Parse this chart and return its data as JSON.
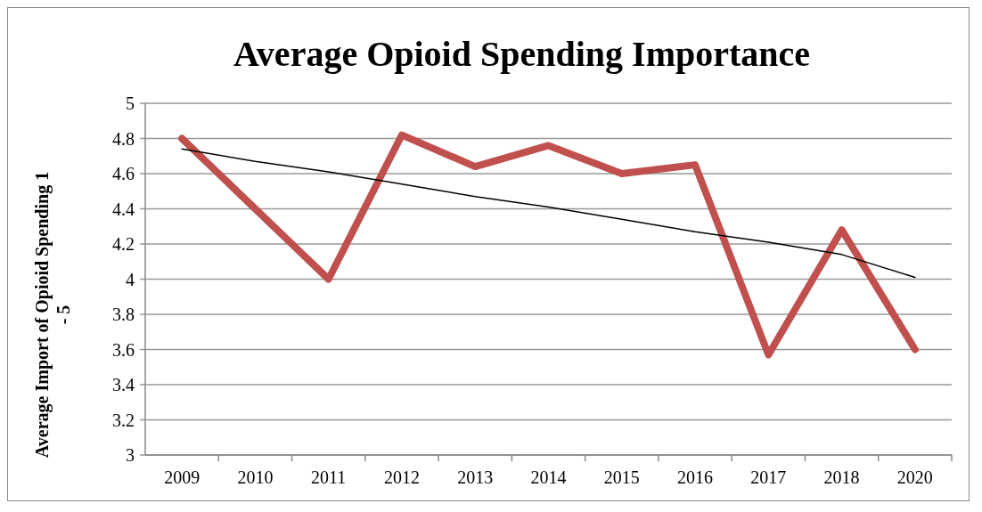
{
  "chart_data": {
    "type": "line",
    "title": "Average Opioid Spending Importance",
    "ylabel": "Average Import of Opioid Spending 1 - 5",
    "categories": [
      "2009",
      "2010",
      "2011",
      "2012",
      "2013",
      "2014",
      "2015",
      "2016",
      "2017",
      "2018",
      "2020"
    ],
    "series": [
      {
        "color": "#c0504d",
        "values": [
          4.8,
          4.4,
          4.0,
          4.82,
          4.64,
          4.76,
          4.6,
          4.65,
          3.57,
          4.28,
          3.6
        ]
      },
      {
        "type": "line",
        "color": "#000000",
        "values": [
          4.74,
          4.67,
          4.61,
          4.54,
          4.47,
          4.41,
          4.34,
          4.27,
          4.21,
          4.14,
          4.01
        ]
      }
    ],
    "ylim": [
      3,
      5
    ],
    "yticks": [
      3,
      3.2,
      3.4,
      3.6,
      3.8,
      4,
      4.2,
      4.4,
      4.6,
      4.8,
      5
    ],
    "grid": "y",
    "marker": "none",
    "line_style": "solid"
  }
}
